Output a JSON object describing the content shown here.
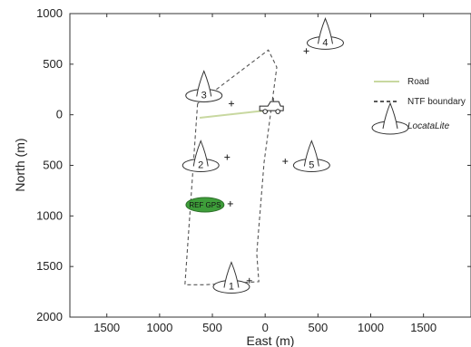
{
  "chart_data": {
    "type": "map-plot",
    "xlabel": "East (m)",
    "ylabel": "North (m)",
    "x_tick_labels": [
      "1500",
      "1000",
      "500",
      "0",
      "500",
      "1000",
      "1500"
    ],
    "x_tick_values": [
      -1500,
      -1000,
      -500,
      0,
      500,
      1000,
      1500
    ],
    "y_tick_labels": [
      "1000",
      "500",
      "0",
      "500",
      "1000",
      "1500",
      "2000"
    ],
    "y_tick_values": [
      1000,
      500,
      0,
      -500,
      -1000,
      -1500,
      -2000
    ],
    "xlim": [
      -1850,
      1950
    ],
    "ylim": [
      -2000,
      1000
    ],
    "grid": false,
    "legend_position": "right",
    "legend": [
      {
        "label": "Road",
        "style": "solid",
        "color": "#c8d8a0"
      },
      {
        "label": "NTF boundary",
        "style": "dashed",
        "color": "#222222"
      },
      {
        "label": "LocataLite",
        "style": "cone-marker",
        "color": "#222222"
      }
    ],
    "road": [
      [
        -620,
        -30
      ],
      [
        70,
        50
      ]
    ],
    "boundary": [
      [
        -640,
        110
      ],
      [
        -760,
        -1680
      ],
      [
        -580,
        -1680
      ],
      [
        -60,
        -1650
      ],
      [
        -60,
        -1650
      ],
      [
        -80,
        -1370
      ],
      [
        -10,
        -470
      ],
      [
        110,
        470
      ],
      [
        30,
        640
      ],
      [
        -640,
        110
      ]
    ],
    "locatalites": [
      {
        "id": "1",
        "label": "1",
        "x": -320,
        "y": -1700
      },
      {
        "id": "2",
        "label": "2",
        "x": -610,
        "y": -500
      },
      {
        "id": "3",
        "label": "3",
        "x": -580,
        "y": 190
      },
      {
        "id": "4",
        "label": "4",
        "x": 570,
        "y": 710
      },
      {
        "id": "5",
        "label": "5",
        "x": 440,
        "y": -500
      }
    ],
    "plus_markers": [
      {
        "x": -320,
        "y": 110
      },
      {
        "x": 390,
        "y": 630
      },
      {
        "x": -360,
        "y": -420
      },
      {
        "x": 190,
        "y": -460
      },
      {
        "x": -330,
        "y": -880
      },
      {
        "x": -150,
        "y": -1640
      }
    ],
    "ref_gps": {
      "label": "REF GPS",
      "x": -570,
      "y": -890,
      "color": "#3e9e3a"
    },
    "vehicle": {
      "x": 60,
      "y": 50
    }
  }
}
